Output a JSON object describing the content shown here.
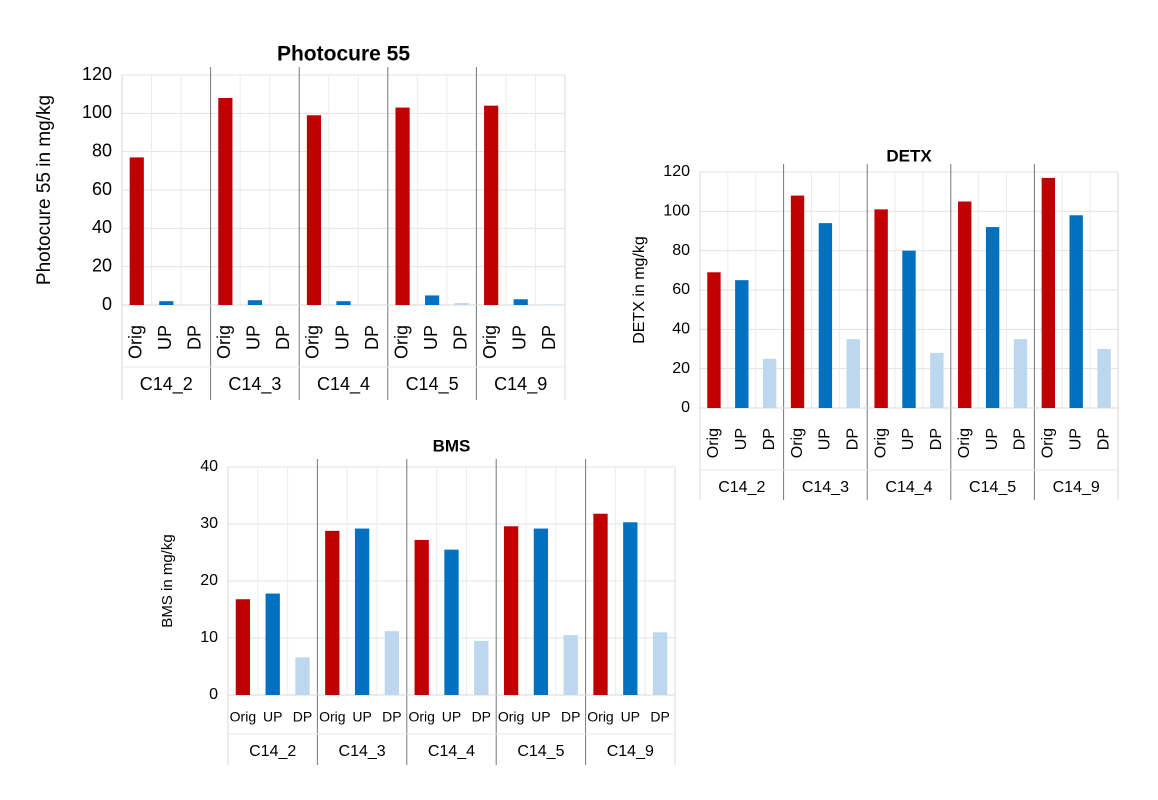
{
  "chart_data": [
    {
      "type": "bar",
      "title": "Photocure 55",
      "y_label": "Photocure 55 in mg/kg",
      "groups": [
        "C14_2",
        "C14_3",
        "C14_4",
        "C14_5",
        "C14_9"
      ],
      "categories": [
        "Orig",
        "UP",
        "DP"
      ],
      "colors": [
        "#c00000",
        "#0070c0",
        "#bdd7ee"
      ],
      "values": [
        [
          77,
          2,
          0
        ],
        [
          108,
          2.5,
          0
        ],
        [
          99,
          2,
          0
        ],
        [
          103,
          5,
          1
        ],
        [
          104,
          3,
          0.3
        ]
      ],
      "ylim": [
        0,
        120
      ],
      "yticks": [
        0,
        20,
        40,
        60,
        80,
        100,
        120
      ],
      "grid": true
    },
    {
      "type": "bar",
      "title": "DETX",
      "y_label": "DETX in mg/kg",
      "groups": [
        "C14_2",
        "C14_3",
        "C14_4",
        "C14_5",
        "C14_9"
      ],
      "categories": [
        "Orig",
        "UP",
        "DP"
      ],
      "colors": [
        "#c00000",
        "#0070c0",
        "#bdd7ee"
      ],
      "values": [
        [
          69,
          65,
          25
        ],
        [
          108,
          94,
          35
        ],
        [
          101,
          80,
          28
        ],
        [
          105,
          92,
          35
        ],
        [
          117,
          98,
          30
        ]
      ],
      "ylim": [
        0,
        120
      ],
      "yticks": [
        0,
        20,
        40,
        60,
        80,
        100,
        120
      ],
      "grid": true
    },
    {
      "type": "bar",
      "title": "BMS",
      "y_label": "BMS in mg/kg",
      "groups": [
        "C14_2",
        "C14_3",
        "C14_4",
        "C14_5",
        "C14_9"
      ],
      "categories": [
        "Orig",
        "UP",
        "DP"
      ],
      "colors": [
        "#c00000",
        "#0070c0",
        "#bdd7ee"
      ],
      "values": [
        [
          16.8,
          17.8,
          6.6
        ],
        [
          28.8,
          29.2,
          11.2
        ],
        [
          27.2,
          25.5,
          9.5
        ],
        [
          29.6,
          29.2,
          10.5
        ],
        [
          31.8,
          30.3,
          11
        ]
      ],
      "ylim": [
        0,
        40
      ],
      "yticks": [
        0,
        10,
        20,
        30,
        40
      ],
      "grid": true
    }
  ]
}
